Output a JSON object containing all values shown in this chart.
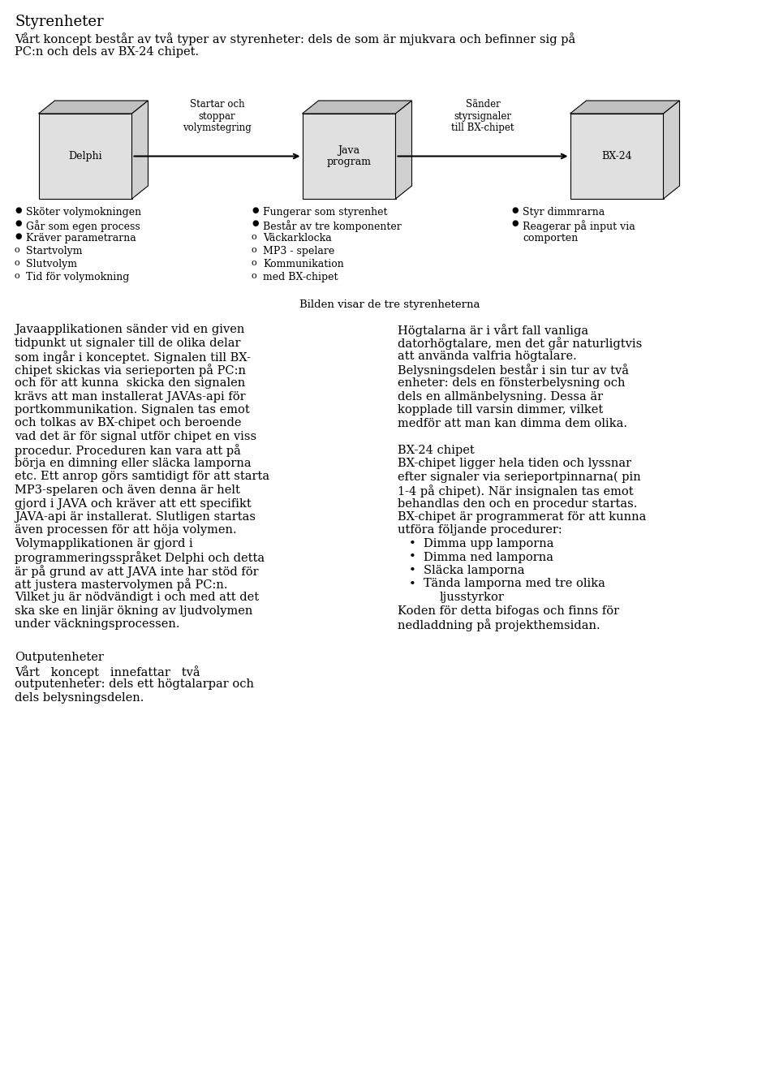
{
  "bg_color": "#ffffff",
  "title": "Styrenheter",
  "intro_line1": "Vårt koncept består av två typer av styrenheter: dels de som är mjukvara och befinner sig på",
  "intro_line2": "PC:n och dels av BX-24 chipet.",
  "diagram_caption": "Bilden visar de tre styrenheterna",
  "box_labels": [
    "Delphi",
    "Java\nprogram",
    "BX-24"
  ],
  "arrow1_label": "Startar och\nstoppar\nvolymstegring",
  "arrow2_label": "Sänder\nstyrsignaler\ntill BX-chipet",
  "left_bullets": [
    {
      "type": "filled",
      "text": "Sköter volymokningen"
    },
    {
      "type": "filled",
      "text": "Går som egen process"
    },
    {
      "type": "filled",
      "text": "Kräver parametrarna"
    },
    {
      "type": "open",
      "text": "Startvolym"
    },
    {
      "type": "open",
      "text": "Slutvolym"
    },
    {
      "type": "open",
      "text": "Tid för volymokning"
    }
  ],
  "mid_bullets": [
    {
      "type": "filled",
      "text": "Fungerar som styrenhet"
    },
    {
      "type": "filled",
      "text": "Består av tre komponenter"
    },
    {
      "type": "open",
      "text": "Väckarklocka"
    },
    {
      "type": "open",
      "text": "MP3 - spelare"
    },
    {
      "type": "open",
      "text": "Kommunikation"
    },
    {
      "type": "open",
      "text": "med BX-chipet"
    }
  ],
  "right_bullets": [
    {
      "type": "filled",
      "text": "Styr dimmrarna"
    },
    {
      "type": "filled",
      "text": "Reagerar på input via\ncomporten"
    }
  ],
  "left_col_lines": [
    "Javaapplikationen sänder vid en given",
    "tidpunkt ut signaler till de olika delar",
    "som ingår i konceptet. Signalen till BX-",
    "chipet skickas via serieporten på PC:n",
    "och för att kunna  skicka den signalen",
    "krävs att man installerat JAVAs-api för",
    "portkommunikation. Signalen tas emot",
    "och tolkas av BX-chipet och beroende",
    "vad det är för signal utför chipet en viss",
    "procedur. Proceduren kan vara att på",
    "börja en dimning eller släcka lamporna",
    "etc. Ett anrop görs samtidigt för att starta",
    "MP3-spelaren och även denna är helt",
    "gjord i JAVA och kräver att ett specifikt",
    "JAVA-api är installerat. Slutligen startas",
    "även processen för att höja volymen.",
    "Volymapplikationen är gjord i",
    "programmeringsspråket Delphi och detta",
    "är på grund av att JAVA inte har stöd för",
    "att justera mastervolymen på PC:n.",
    "Vilket ju är nödvändigt i och med att det",
    "ska ske en linjär ökning av ljudvolymen",
    "under väckningsprocessen."
  ],
  "right_col_lines": [
    "Högtalarna är i vårt fall vanliga",
    "datorhögtalare, men det går naturligtvis",
    "att använda valfria högtalare.",
    "Belysningsdelen består i sin tur av två",
    "enheter: dels en fönsterbelysning och",
    "dels en allmänbelysning. Dessa är",
    "kopplade till varsin dimmer, vilket",
    "medför att man kan dimma dem olika."
  ],
  "bx24_title": "BX-24 chipet",
  "bx24_lines": [
    "BX-chipet ligger hela tiden och lyssnar",
    "efter signaler via serieportpinnarna( pin",
    "1-4 på chipet). När insignalen tas emot",
    "behandlas den och en procedur startas.",
    "BX-chipet är programmerat för att kunna",
    "utföra följande procedurer:"
  ],
  "bx24_bullets": [
    "Dimma upp lamporna",
    "Dimma ned lamporna",
    "Släcka lamporna",
    "Tända lamporna med tre olika",
    "ljusstyrkor"
  ],
  "bx24_bullet_indent": [
    0,
    0,
    0,
    0,
    1
  ],
  "bx24_footer_lines": [
    "Koden för detta bifogas och finns för",
    "nedladdning på projekthemsidan."
  ],
  "output_title": "Outputenheter",
  "output_lines": [
    "Vårt   koncept   innefattar   två",
    "outputenheter: dels ett högtalarpar och",
    "dels belysningsdelen."
  ]
}
